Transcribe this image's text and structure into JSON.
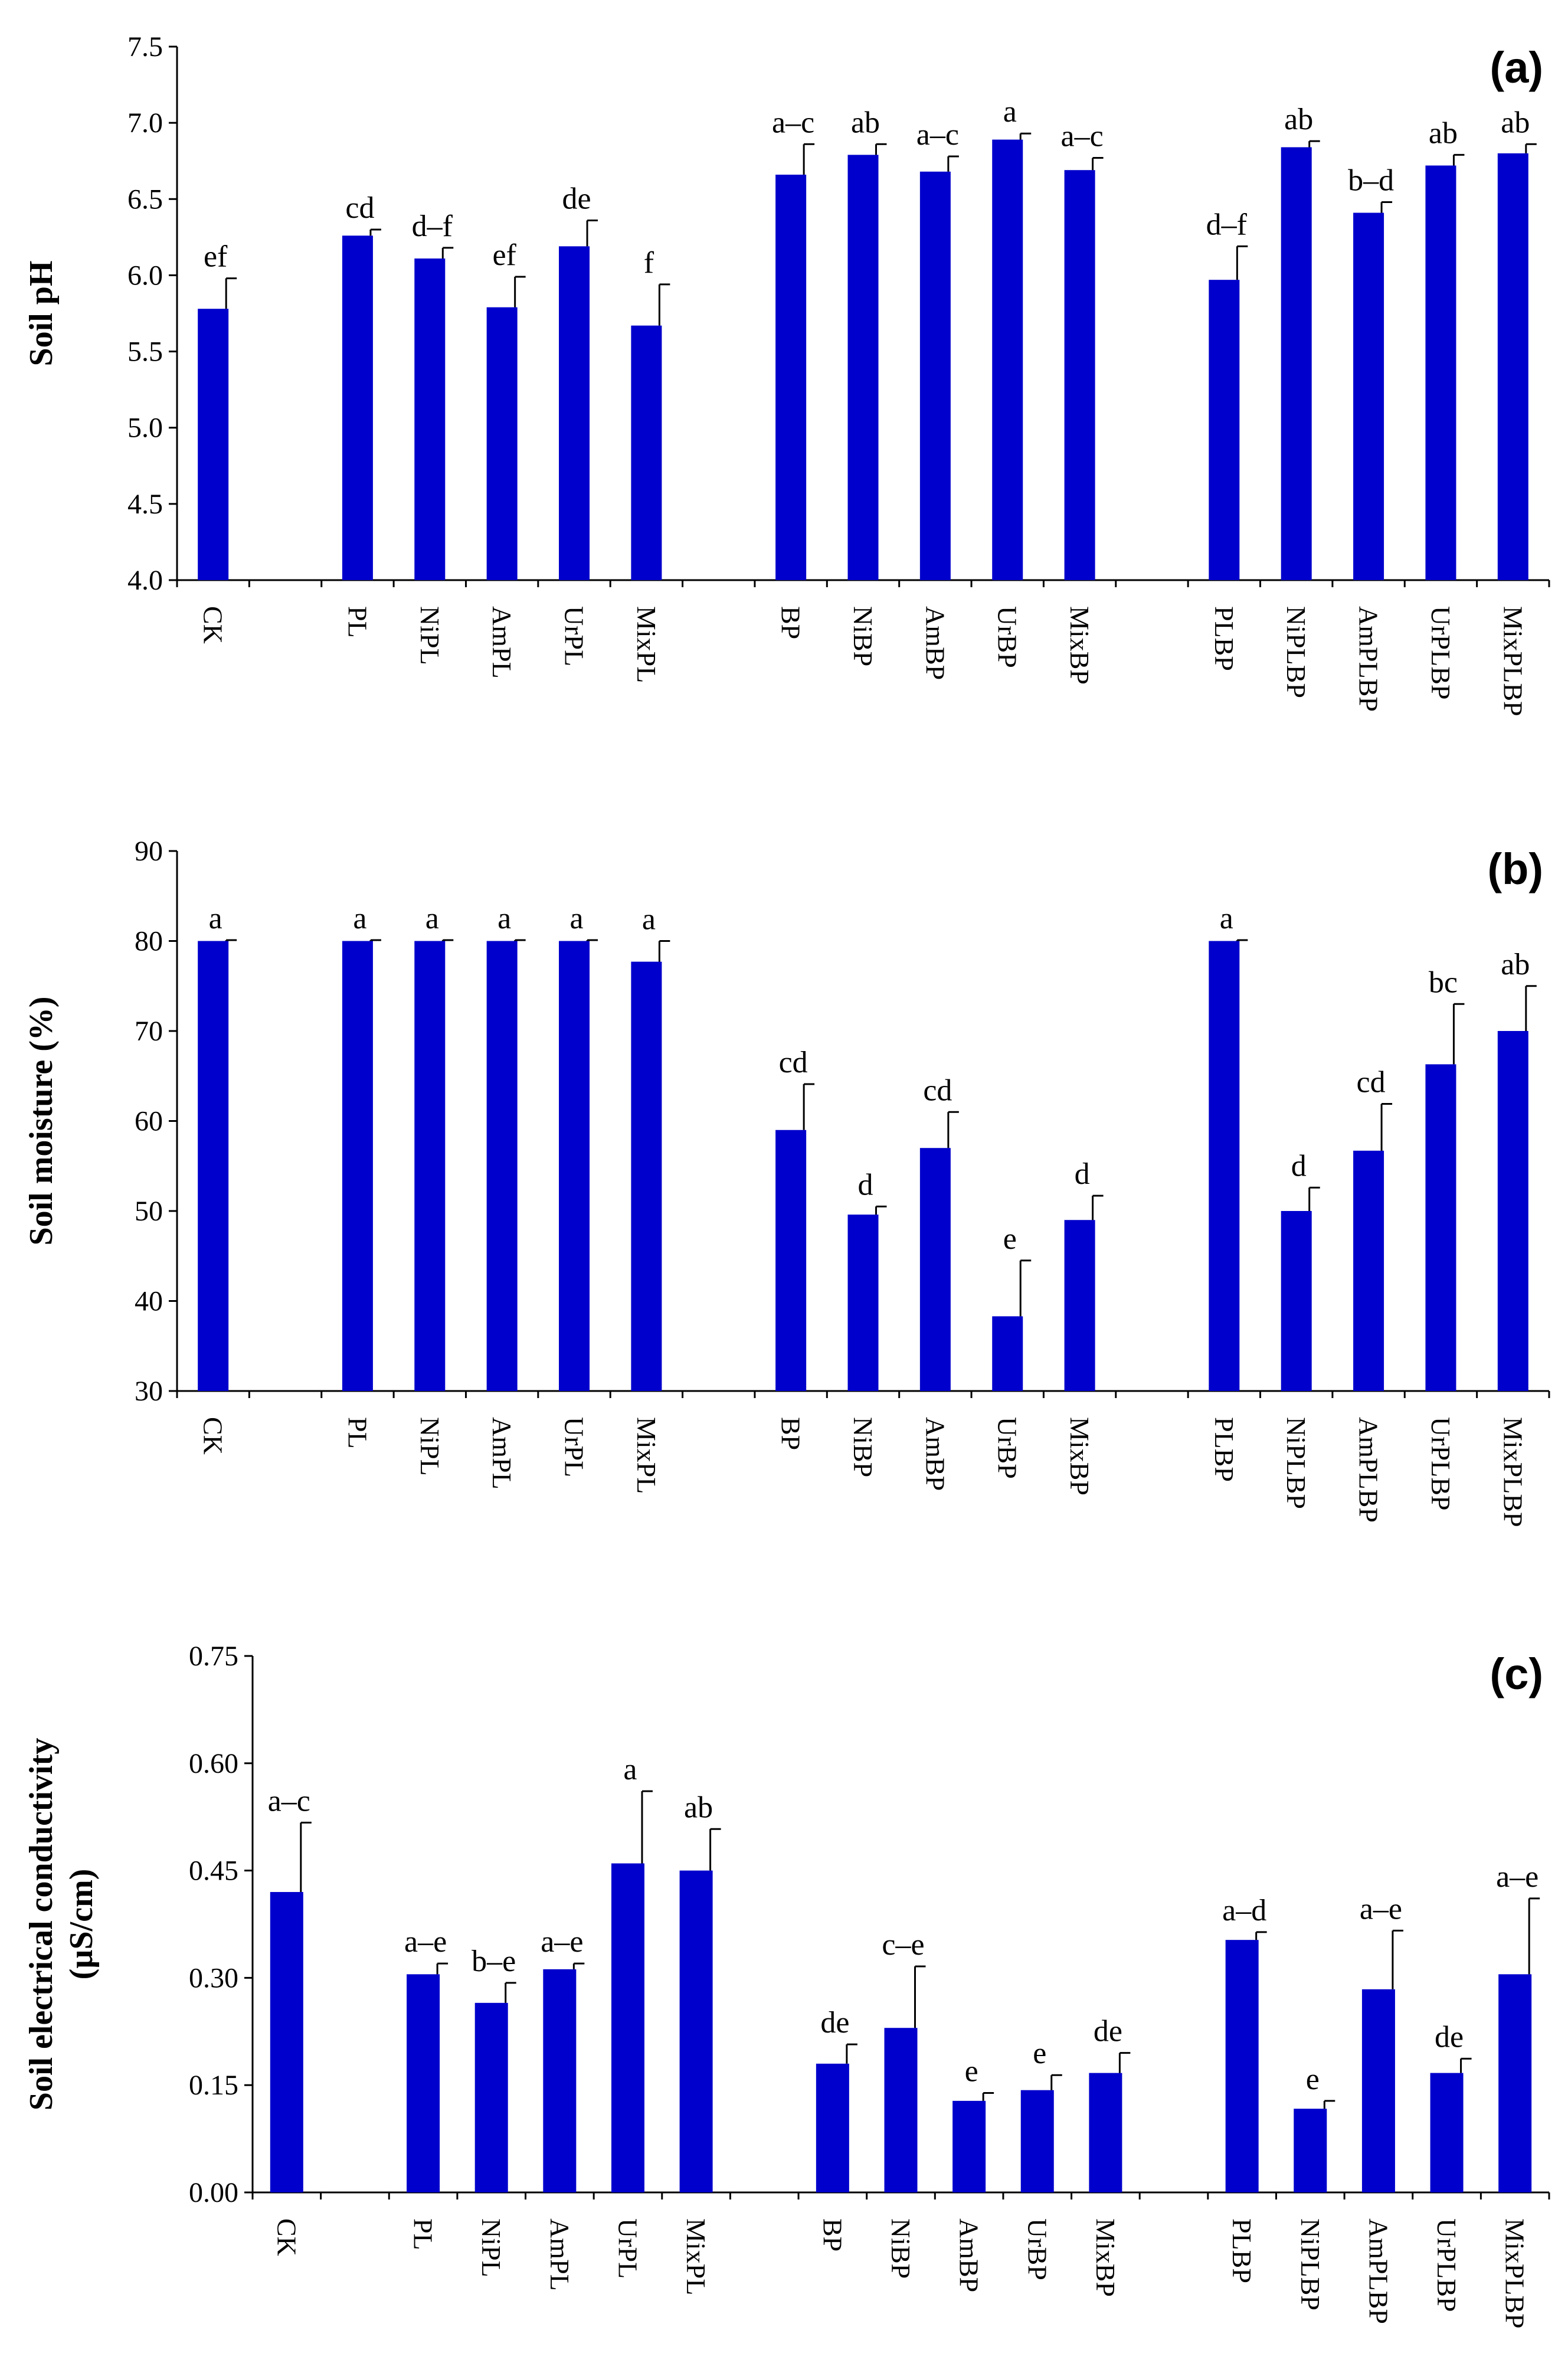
{
  "chart_data": [
    {
      "type": "bar",
      "panel_label": "(a)",
      "ylabel_lines": [
        "Soil pH"
      ],
      "ylim": [
        4.0,
        7.5
      ],
      "yticks": [
        "4.0",
        "4.5",
        "5.0",
        "5.5",
        "6.0",
        "6.5",
        "7.0",
        "7.5"
      ],
      "ytick_values": [
        4.0,
        4.5,
        5.0,
        5.5,
        6.0,
        6.5,
        7.0,
        7.5
      ],
      "bar_color": "#0000CC",
      "categories": [
        "CK",
        "PL",
        "NiPL",
        "AmPL",
        "UrPL",
        "MixPL",
        "BP",
        "NiBP",
        "AmBP",
        "UrBP",
        "MixBP",
        "PLBP",
        "NiPLBP",
        "AmPLBP",
        "UrPLBP",
        "MixPLBP"
      ],
      "groups": [
        0,
        1,
        1,
        1,
        1,
        1,
        2,
        2,
        2,
        2,
        2,
        3,
        3,
        3,
        3,
        3
      ],
      "values": [
        5.78,
        6.26,
        6.11,
        5.79,
        6.19,
        5.67,
        6.66,
        6.79,
        6.68,
        6.89,
        6.69,
        5.97,
        6.84,
        6.41,
        6.72,
        6.8
      ],
      "errors": [
        0.2,
        0.04,
        0.07,
        0.2,
        0.17,
        0.27,
        0.2,
        0.07,
        0.1,
        0.04,
        0.08,
        0.22,
        0.04,
        0.07,
        0.07,
        0.06
      ],
      "letters": [
        "ef",
        "cd",
        "d–f",
        "ef",
        "de",
        "f",
        "a–c",
        "ab",
        "a–c",
        "a",
        "a–c",
        "d–f",
        "ab",
        "b–d",
        "ab",
        "ab"
      ]
    },
    {
      "type": "bar",
      "panel_label": "(b)",
      "ylabel_lines": [
        "Soil moisture (%)"
      ],
      "ylim": [
        30,
        90
      ],
      "yticks": [
        "30",
        "40",
        "50",
        "60",
        "70",
        "80",
        "90"
      ],
      "ytick_values": [
        30,
        40,
        50,
        60,
        70,
        80,
        90
      ],
      "bar_color": "#0000CC",
      "categories": [
        "CK",
        "PL",
        "NiPL",
        "AmPL",
        "UrPL",
        "MixPL",
        "BP",
        "NiBP",
        "AmBP",
        "UrBP",
        "MixBP",
        "PLBP",
        "NiPLBP",
        "AmPLBP",
        "UrPLBP",
        "MixPLBP"
      ],
      "groups": [
        0,
        1,
        1,
        1,
        1,
        1,
        2,
        2,
        2,
        2,
        2,
        3,
        3,
        3,
        3,
        3
      ],
      "values": [
        80.0,
        80.0,
        80.0,
        80.0,
        80.0,
        77.7,
        59.0,
        49.6,
        57.0,
        38.3,
        49.0,
        80.0,
        50.0,
        56.7,
        66.3,
        70.0
      ],
      "errors": [
        0.1,
        0.1,
        0.1,
        0.1,
        0.1,
        2.3,
        5.1,
        0.9,
        4.0,
        6.2,
        2.7,
        0.1,
        2.6,
        5.2,
        6.7,
        5.0
      ],
      "letters": [
        "a",
        "a",
        "a",
        "a",
        "a",
        "a",
        "cd",
        "d",
        "cd",
        "e",
        "d",
        "a",
        "d",
        "cd",
        "bc",
        "ab"
      ]
    },
    {
      "type": "bar",
      "panel_label": "(c)",
      "ylabel_lines": [
        "Soil electrical conductivity",
        "(µS/cm)"
      ],
      "ylim": [
        0.0,
        0.75
      ],
      "yticks": [
        "0.00",
        "0.15",
        "0.30",
        "0.45",
        "0.60",
        "0.75"
      ],
      "ytick_values": [
        0.0,
        0.15,
        0.3,
        0.45,
        0.6,
        0.75
      ],
      "bar_color": "#0000CC",
      "categories": [
        "CK",
        "PL",
        "NiPL",
        "AmPL",
        "UrPL",
        "MixPL",
        "BP",
        "NiBP",
        "AmBP",
        "UrBP",
        "MixBP",
        "PLBP",
        "NiPLBP",
        "AmPLBP",
        "UrPLBP",
        "MixPLBP"
      ],
      "groups": [
        0,
        1,
        1,
        1,
        1,
        1,
        2,
        2,
        2,
        2,
        2,
        3,
        3,
        3,
        3,
        3
      ],
      "values": [
        0.42,
        0.305,
        0.265,
        0.312,
        0.46,
        0.45,
        0.18,
        0.23,
        0.128,
        0.143,
        0.167,
        0.353,
        0.117,
        0.284,
        0.167,
        0.305
      ],
      "errors": [
        0.097,
        0.015,
        0.028,
        0.008,
        0.101,
        0.058,
        0.027,
        0.086,
        0.011,
        0.021,
        0.028,
        0.011,
        0.011,
        0.082,
        0.02,
        0.106
      ],
      "letters": [
        "a–c",
        "a–e",
        "b–e",
        "a–e",
        "a",
        "ab",
        "de",
        "c–e",
        "e",
        "e",
        "de",
        "a–d",
        "e",
        "a–e",
        "de",
        "a–e"
      ]
    }
  ]
}
